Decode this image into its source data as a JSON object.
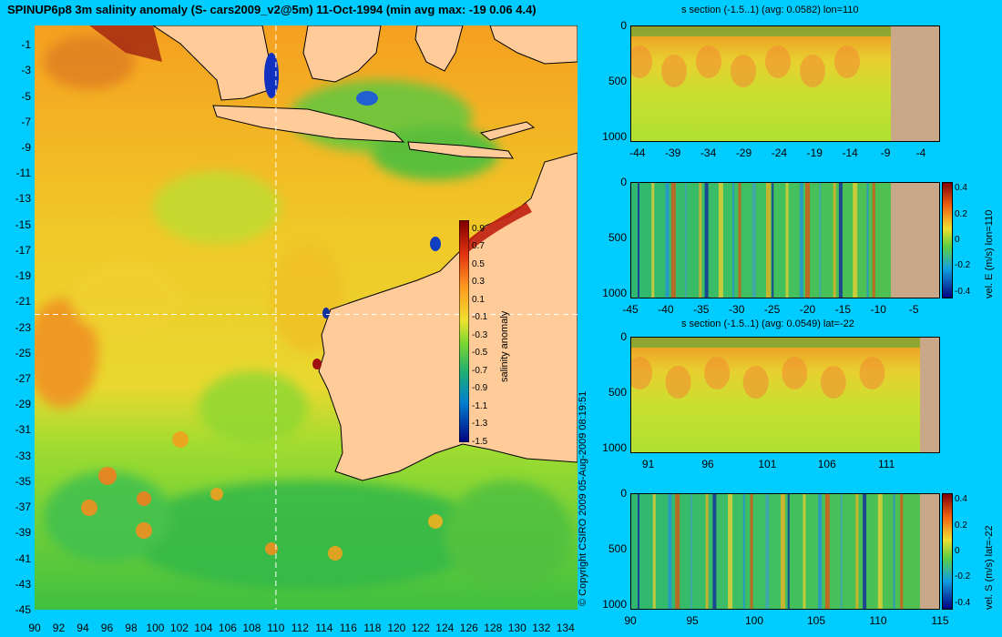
{
  "title": "SPINUP6p8 3m salinity anomaly (S- cars2009_v2@5m) 11-Oct-1994 (min avg max: -19 0.06 4.4)",
  "copyright": "© Copyright CSIRO 2009  05-Aug-2009 08:19:51",
  "map": {
    "x_ticks": [
      "90",
      "92",
      "94",
      "96",
      "98",
      "100",
      "102",
      "104",
      "106",
      "108",
      "110",
      "112",
      "114",
      "116",
      "118",
      "120",
      "122",
      "124",
      "126",
      "128",
      "130",
      "132",
      "134"
    ],
    "y_ticks": [
      "-1",
      "-3",
      "-5",
      "-7",
      "-9",
      "-11",
      "-13",
      "-15",
      "-17",
      "-19",
      "-21",
      "-23",
      "-25",
      "-27",
      "-29",
      "-31",
      "-33",
      "-35",
      "-37",
      "-39",
      "-41",
      "-43",
      "-45"
    ],
    "lon_range": [
      90,
      135
    ],
    "lat_range": [
      -45,
      0.5
    ],
    "crosshair": {
      "lon": 110,
      "lat": -22
    },
    "colorbar": {
      "label": "salinity anomaly",
      "ticks": [
        "0.9",
        "0.7",
        "0.5",
        "0.3",
        "0.1",
        "-0.1",
        "-0.3",
        "-0.5",
        "-0.7",
        "-0.9",
        "-1.1",
        "-1.3",
        "-1.5"
      ],
      "range": [
        -1.5,
        1.0
      ]
    },
    "land_color": "#ffcc99"
  },
  "panels": [
    {
      "title": "s section (-1.5..1) (avg: 0.0582) lon=110",
      "x_ticks": [
        "-44",
        "-39",
        "-34",
        "-29",
        "-24",
        "-19",
        "-14",
        "-9",
        "-4"
      ],
      "y_ticks": [
        "0",
        "500",
        "1000"
      ],
      "ylabel": "",
      "colorbar_ticks": []
    },
    {
      "title": "",
      "x_ticks": [
        "-45",
        "-40",
        "-35",
        "-30",
        "-25",
        "-20",
        "-15",
        "-10",
        "-5"
      ],
      "y_ticks": [
        "0",
        "500",
        "1000"
      ],
      "ylabel": "vel. E (m/s) lon=110",
      "colorbar_ticks": [
        "0.4",
        "0.2",
        "0",
        "-0.2",
        "-0.4"
      ]
    },
    {
      "title": "s section (-1.5..1) (avg: 0.0549) lat=-22",
      "x_ticks": [
        "91",
        "96",
        "101",
        "106",
        "111"
      ],
      "y_ticks": [
        "0",
        "500",
        "1000"
      ],
      "ylabel": "",
      "colorbar_ticks": []
    },
    {
      "title": "",
      "x_ticks": [
        "90",
        "95",
        "100",
        "105",
        "110",
        "115"
      ],
      "y_ticks": [
        "0",
        "500",
        "1000"
      ],
      "ylabel": "vel. S (m/s) lat=-22",
      "colorbar_ticks": [
        "0.4",
        "0.2",
        "0",
        "-0.2",
        "-0.4"
      ]
    }
  ]
}
